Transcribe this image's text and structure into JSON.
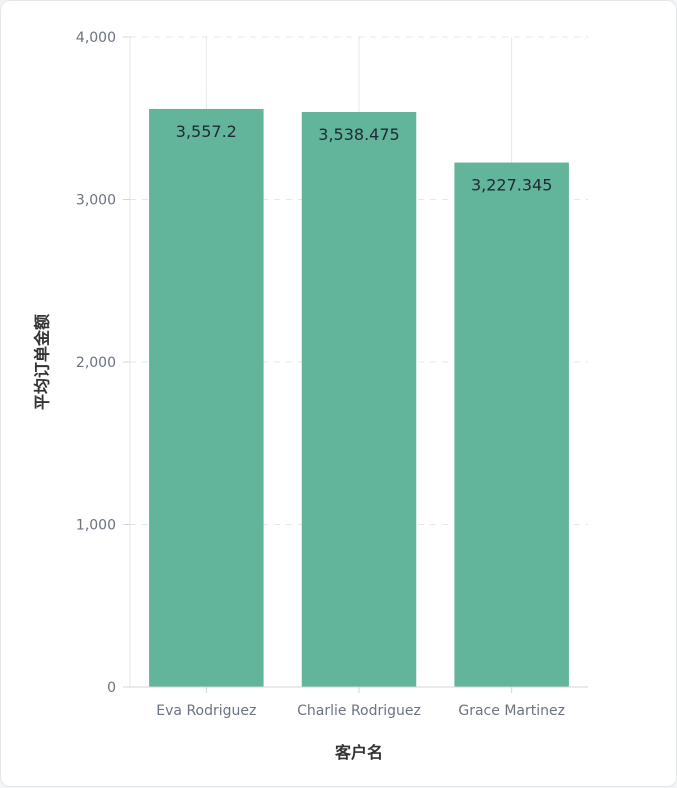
{
  "chart_data": {
    "type": "bar",
    "categories": [
      "Eva Rodriguez",
      "Charlie Rodriguez",
      "Grace Martinez"
    ],
    "values": [
      3557.2,
      3538.475,
      3227.345
    ],
    "value_labels": [
      "3,557.2",
      "3,538.475",
      "3,227.345"
    ],
    "xlabel": "客户名",
    "ylabel": "平均订单金额",
    "ylim": [
      0,
      4000
    ],
    "yticks": [
      0,
      1000,
      2000,
      3000,
      4000
    ],
    "ytick_labels": [
      "0",
      "1,000",
      "2,000",
      "3,000",
      "4,000"
    ],
    "grid": true,
    "legend": "none",
    "bar_color": "#62b49a"
  }
}
